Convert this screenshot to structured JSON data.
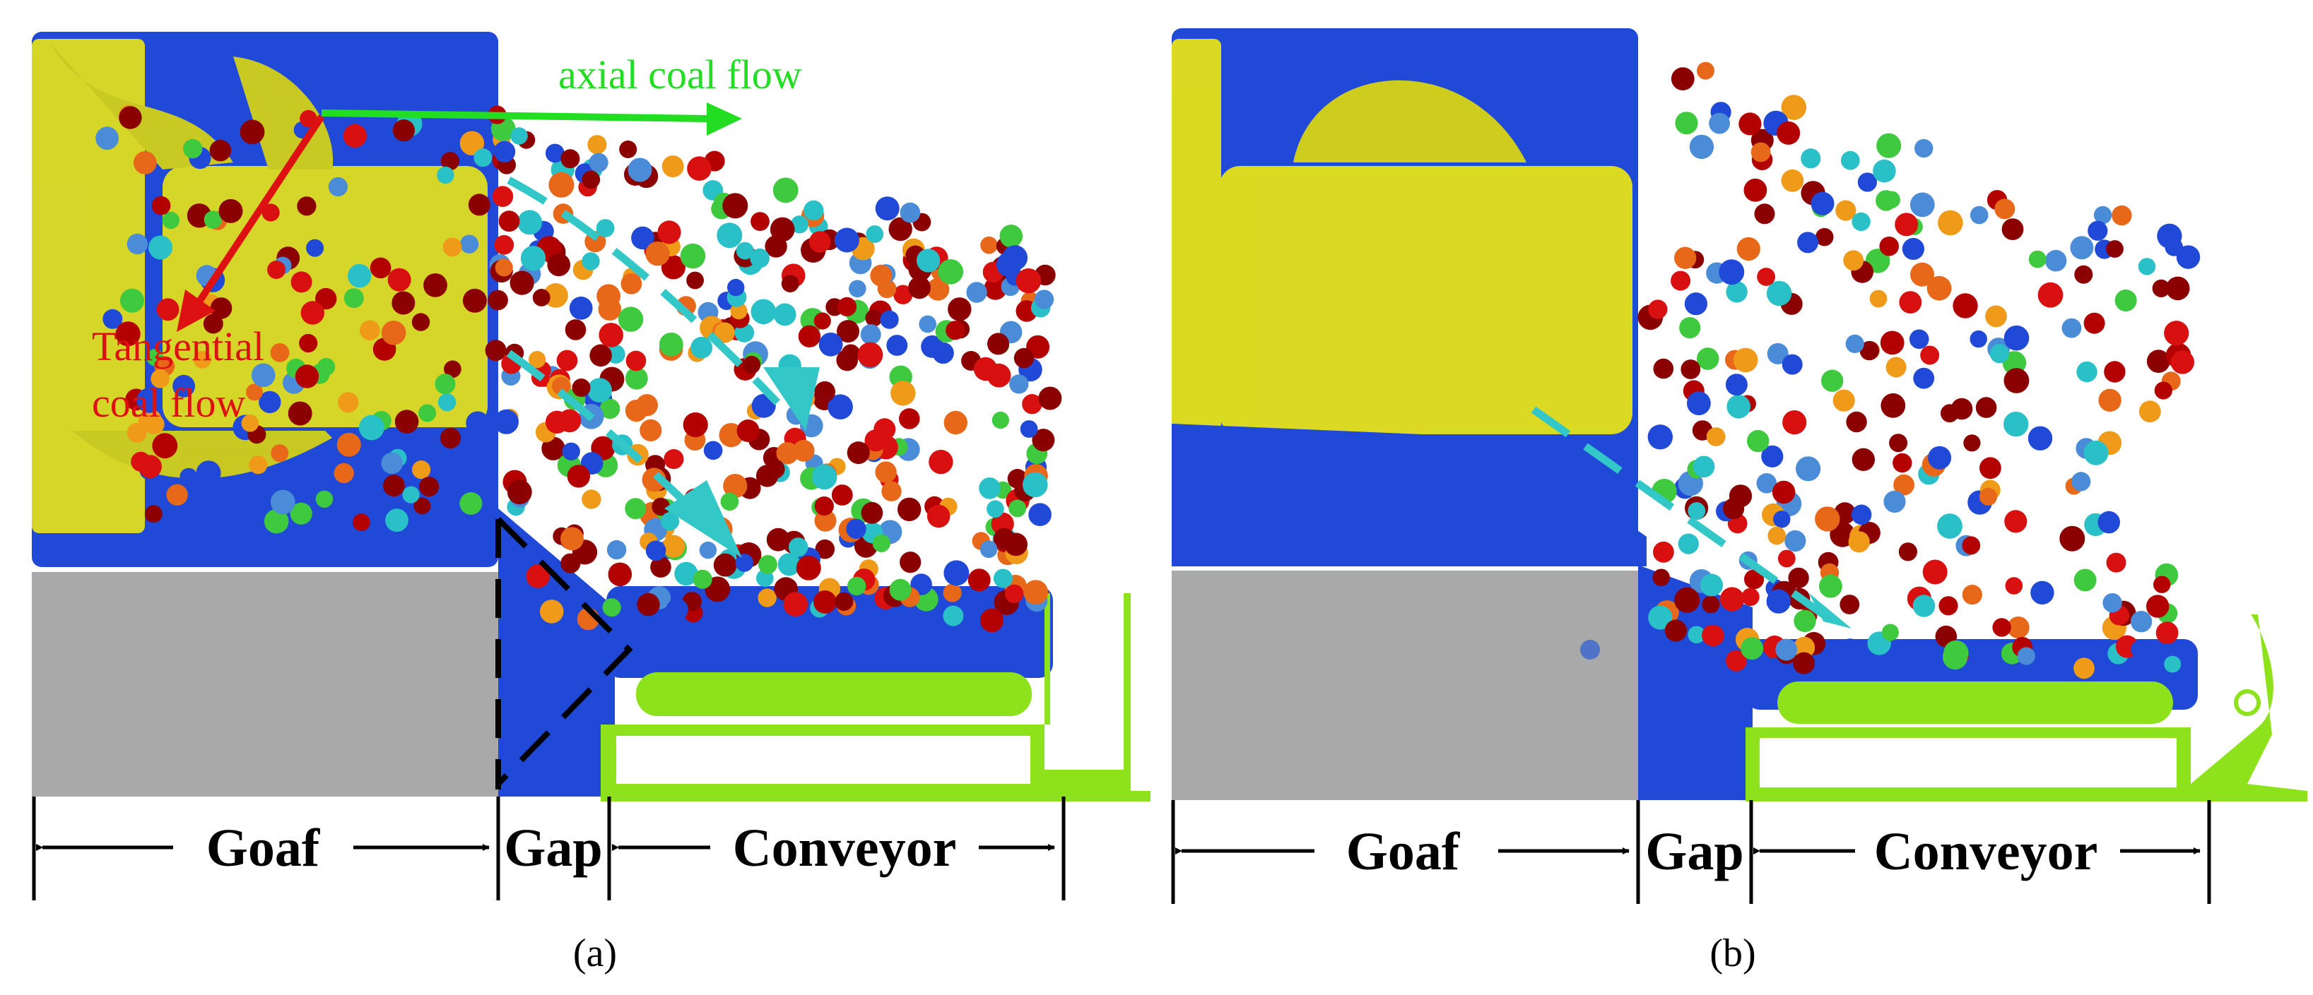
{
  "panels": [
    {
      "id": "a",
      "caption": "(a)",
      "annotations": {
        "axial": {
          "text": "axial coal flow",
          "color": "#22dd22"
        },
        "tangential_line1": {
          "text": "Tangential",
          "color": "#dd1111"
        },
        "tangential_line2": {
          "text": "coal flow",
          "color": "#dd1111"
        }
      },
      "dimensions": {
        "goaf": "Goaf",
        "gap": "Gap",
        "conveyor": "Conveyor"
      }
    },
    {
      "id": "b",
      "caption": "(b)",
      "dimensions": {
        "goaf": "Goaf",
        "gap": "Gap",
        "conveyor": "Conveyor"
      }
    }
  ],
  "colors": {
    "coal_blue": "#1f49d6",
    "drum_yellow": "#e6e21a",
    "goaf_gray": "#a9a9a9",
    "conveyor_green": "#8ee21c",
    "flow_arrow_cyan": "#33c7c7",
    "axial_arrow": "#22dd22",
    "tangential_arrow": "#dd1111"
  },
  "icons": [
    "coal-particle",
    "shearer-drum",
    "scraper-conveyor",
    "flow-arrow"
  ]
}
